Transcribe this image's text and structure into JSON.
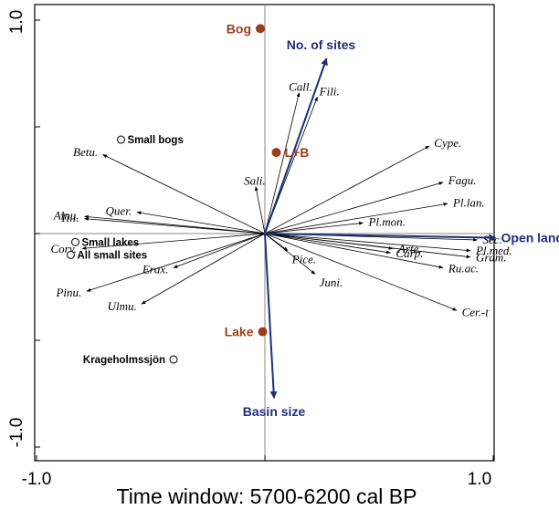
{
  "chart_data": {
    "type": "scatter",
    "title": "",
    "xlabel": "Time window: 5700-6200 cal BP",
    "ylabel": "",
    "xlim": [
      -1.0,
      1.0
    ],
    "ylim": [
      -1.0,
      1.0
    ],
    "x_tick_labels": [
      "-1.0",
      "1.0"
    ],
    "y_tick_labels": [
      "1.0",
      "-1.0"
    ],
    "species_arrows": [
      {
        "label": "Call.",
        "x": 0.15,
        "y": 0.66
      },
      {
        "label": "Fili.",
        "x": 0.23,
        "y": 0.64
      },
      {
        "label": "Cype.",
        "x": 0.72,
        "y": 0.41
      },
      {
        "label": "Fagu.",
        "x": 0.78,
        "y": 0.24
      },
      {
        "label": "Pl.lan.",
        "x": 0.8,
        "y": 0.14
      },
      {
        "label": "Pl.mon.",
        "x": 0.43,
        "y": 0.05
      },
      {
        "label": "Sali.",
        "x": -0.04,
        "y": 0.22
      },
      {
        "label": "Betu.",
        "x": -0.71,
        "y": 0.37
      },
      {
        "label": "Quer.",
        "x": -0.56,
        "y": 0.1
      },
      {
        "label": "Alnu.",
        "x": -0.79,
        "y": 0.08
      },
      {
        "label": "Tili.",
        "x": -0.79,
        "y": 0.07
      },
      {
        "label": "Cory.",
        "x": -0.8,
        "y": -0.07
      },
      {
        "label": "Erax.",
        "x": -0.4,
        "y": -0.16
      },
      {
        "label": "Pinu.",
        "x": -0.78,
        "y": -0.27
      },
      {
        "label": "Ulmu.",
        "x": -0.54,
        "y": -0.33
      },
      {
        "label": "Pice.",
        "x": 0.1,
        "y": -0.08
      },
      {
        "label": "Juni.",
        "x": 0.22,
        "y": -0.19
      },
      {
        "label": "Arte.",
        "x": 0.56,
        "y": -0.07
      },
      {
        "label": "Carp.",
        "x": 0.55,
        "y": -0.09
      },
      {
        "label": "Sec.",
        "x": 0.93,
        "y": -0.03
      },
      {
        "label": "Pl.med.",
        "x": 0.9,
        "y": -0.08
      },
      {
        "label": "Gram.",
        "x": 0.9,
        "y": -0.11
      },
      {
        "label": "Ru.ac.",
        "x": 0.78,
        "y": -0.16
      },
      {
        "label": "Cer.-t",
        "x": 0.84,
        "y": -0.36
      }
    ],
    "environmental_arrows": [
      {
        "label": "No. of sites",
        "x": 0.27,
        "y": 0.82
      },
      {
        "label": "Open land",
        "x": 1.01,
        "y": -0.02
      },
      {
        "label": "Basin size",
        "x": 0.04,
        "y": -0.77
      }
    ],
    "nominal_variables": [
      {
        "label": "Bog",
        "x": -0.02,
        "y": 0.96
      },
      {
        "label": "L+B",
        "x": 0.05,
        "y": 0.38
      },
      {
        "label": "Lake",
        "x": -0.01,
        "y": -0.46
      }
    ],
    "sites": [
      {
        "label": "Small bogs",
        "x": -0.63,
        "y": 0.44
      },
      {
        "label": "Small lakes",
        "x": -0.83,
        "y": -0.04
      },
      {
        "label": "All small sites",
        "x": -0.85,
        "y": -0.1
      },
      {
        "label": "Krageholmssjön",
        "x": -0.4,
        "y": -0.59
      }
    ],
    "colors": {
      "species": "#000000",
      "environmental": "#1f2e78",
      "nominal": "#9a3f1c",
      "axes": "#888888",
      "frame": "#000000"
    }
  }
}
